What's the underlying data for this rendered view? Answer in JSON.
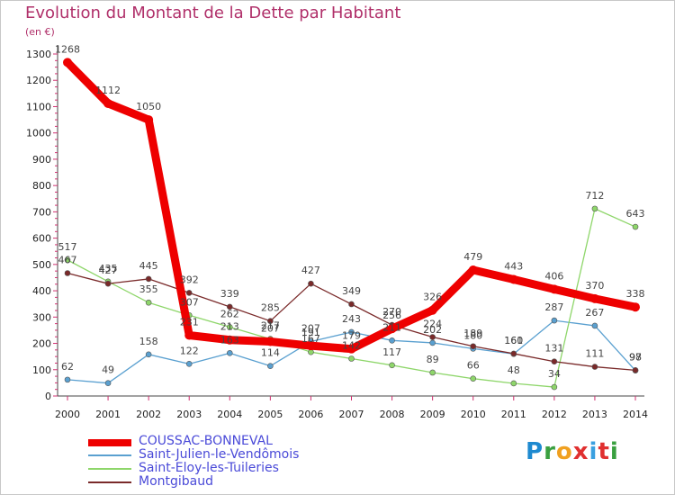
{
  "chart_data": {
    "type": "line",
    "title": "Evolution du Montant de la Dette par Habitant",
    "unit_label": "(en €)",
    "x": [
      "2000",
      "2001",
      "2002",
      "2003",
      "2004",
      "2005",
      "2006",
      "2007",
      "2008",
      "2009",
      "2010",
      "2011",
      "2012",
      "2013",
      "2014"
    ],
    "ylim": [
      0,
      1300
    ],
    "yticks": [
      0,
      100,
      200,
      300,
      400,
      500,
      600,
      700,
      800,
      900,
      1000,
      1100,
      1200,
      1300
    ],
    "grid": false,
    "legend_position": "bottom-left",
    "series": [
      {
        "name": "COUSSAC-BONNEVAL",
        "color": "#ee0000",
        "values": [
          1268,
          1112,
          1050,
          231,
          213,
          207,
          191,
          179,
          256,
          326,
          479,
          443,
          406,
          370,
          338
        ]
      },
      {
        "name": "Saint-Julien-le-Vendômois",
        "color": "#5aa0d0",
        "values": [
          62,
          49,
          158,
          122,
          163,
          114,
          207,
          243,
          211,
          202,
          180,
          160,
          287,
          267,
          97
        ]
      },
      {
        "name": "Saint-Eloy-les-Tuileries",
        "color": "#8ed66a",
        "values": [
          517,
          435,
          355,
          307,
          262,
          217,
          167,
          142,
          117,
          89,
          66,
          48,
          34,
          712,
          643
        ]
      },
      {
        "name": "Montgibaud",
        "color": "#7a2a2a",
        "values": [
          467,
          427,
          445,
          392,
          339,
          285,
          427,
          349,
          270,
          224,
          189,
          161,
          131,
          111,
          98
        ]
      }
    ]
  },
  "brand": {
    "letters": [
      {
        "char": "P",
        "color": "#1e8ad0"
      },
      {
        "char": "r",
        "color": "#3aa040"
      },
      {
        "char": "o",
        "color": "#f0a020"
      },
      {
        "char": "x",
        "color": "#e03030"
      },
      {
        "char": "i",
        "color": "#3aa0e0"
      },
      {
        "char": "t",
        "color": "#e03030"
      },
      {
        "char": "i",
        "color": "#3aa040"
      }
    ]
  }
}
